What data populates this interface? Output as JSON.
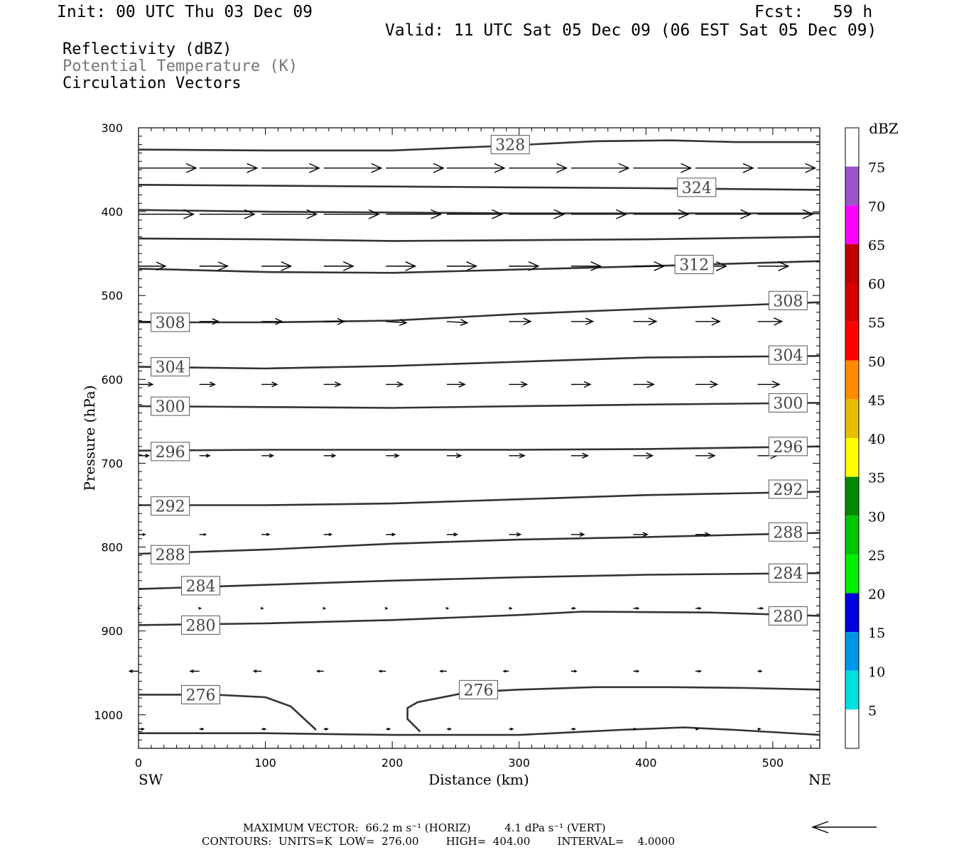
{
  "header": {
    "init": "Init: 00 UTC Thu 03 Dec 09",
    "fcst": "Fcst:   59 h",
    "valid": "Valid: 11 UTC Sat 05 Dec 09 (06 EST Sat 05 Dec 09)"
  },
  "fields": {
    "reflectivity": "Reflectivity (dBZ)",
    "potential_temperature": "Potential Temperature (K)",
    "circulation": "Circulation Vectors"
  },
  "footer": {
    "line1": "MAXIMUM VECTOR:  66.2 m s⁻¹ (HORIZ)          4.1 dPa s⁻¹ (VERT)",
    "line2": "CONTOURS:  UNITS=K  LOW=  276.00        HIGH=  404.00        INTERVAL=    4.0000"
  },
  "colors": {
    "contour": "#333333",
    "vector": "#000000"
  },
  "chart_data": {
    "type": "line",
    "xlabel": "Distance (km)",
    "ylabel": "Pressure (hPa)",
    "x_ticks": [
      0,
      100,
      200,
      300,
      400,
      500
    ],
    "y_ticks": [
      300,
      400,
      500,
      600,
      700,
      800,
      900,
      1000
    ],
    "xlim": [
      0,
      537
    ],
    "ylim": [
      300,
      1040
    ],
    "y_inverted": true,
    "left_end_label": "SW",
    "right_end_label": "NE",
    "colorbar": {
      "title": "dBZ",
      "levels": [
        5,
        10,
        15,
        20,
        25,
        30,
        35,
        40,
        45,
        50,
        55,
        60,
        65,
        70,
        75
      ],
      "colors": [
        "#ffffff",
        "#00e0e0",
        "#0096e6",
        "#0000dc",
        "#00ee00",
        "#00c400",
        "#008800",
        "#ffff00",
        "#e6bf00",
        "#ff8c00",
        "#ff0000",
        "#d60000",
        "#c00000",
        "#ff00ff",
        "#9955c8",
        "#ffffff"
      ]
    },
    "contour_labels": [
      {
        "value": "328",
        "x": 293,
        "p": 320
      },
      {
        "value": "324",
        "x": 440,
        "p": 371
      },
      {
        "value": "312",
        "x": 438,
        "p": 463
      },
      {
        "value": "308",
        "x": 25,
        "p": 532
      },
      {
        "value": "308",
        "x": 512,
        "p": 506
      },
      {
        "value": "304",
        "x": 25,
        "p": 585
      },
      {
        "value": "304",
        "x": 512,
        "p": 571
      },
      {
        "value": "300",
        "x": 25,
        "p": 632
      },
      {
        "value": "300",
        "x": 512,
        "p": 628
      },
      {
        "value": "296",
        "x": 25,
        "p": 686
      },
      {
        "value": "296",
        "x": 512,
        "p": 680
      },
      {
        "value": "292",
        "x": 25,
        "p": 751
      },
      {
        "value": "292",
        "x": 512,
        "p": 731
      },
      {
        "value": "288",
        "x": 25,
        "p": 809
      },
      {
        "value": "288",
        "x": 512,
        "p": 782
      },
      {
        "value": "284",
        "x": 49,
        "p": 846
      },
      {
        "value": "284",
        "x": 512,
        "p": 831
      },
      {
        "value": "280",
        "x": 49,
        "p": 893
      },
      {
        "value": "280",
        "x": 512,
        "p": 882
      },
      {
        "value": "276",
        "x": 49,
        "p": 976
      },
      {
        "value": "276",
        "x": 268,
        "p": 970
      }
    ],
    "contours": [
      {
        "x": [
          0,
          100,
          200,
          280,
          360,
          420,
          470,
          537
        ],
        "p": [
          326,
          327,
          327,
          322,
          316,
          315,
          317,
          317
        ]
      },
      {
        "x": [
          0,
          100,
          200,
          300,
          400,
          537
        ],
        "p": [
          368,
          369,
          370,
          371,
          372,
          374
        ]
      },
      {
        "x": [
          0,
          100,
          200,
          300,
          400,
          537
        ],
        "p": [
          398,
          400,
          401,
          402,
          402,
          402
        ]
      },
      {
        "x": [
          0,
          100,
          200,
          300,
          400,
          537
        ],
        "p": [
          432,
          433,
          435,
          434,
          433,
          430
        ]
      },
      {
        "x": [
          0,
          100,
          200,
          300,
          400,
          537
        ],
        "p": [
          468,
          472,
          473,
          469,
          465,
          459
        ]
      },
      {
        "x": [
          0,
          100,
          200,
          300,
          400,
          537
        ],
        "p": [
          532,
          532,
          530,
          522,
          516,
          508
        ]
      },
      {
        "x": [
          0,
          100,
          200,
          300,
          400,
          537
        ],
        "p": [
          585,
          587,
          584,
          579,
          574,
          572
        ]
      },
      {
        "x": [
          0,
          100,
          200,
          300,
          400,
          537
        ],
        "p": [
          632,
          633,
          634,
          632,
          630,
          628
        ]
      },
      {
        "x": [
          0,
          100,
          200,
          300,
          400,
          537
        ],
        "p": [
          685,
          684,
          684,
          684,
          683,
          680
        ]
      },
      {
        "x": [
          0,
          100,
          200,
          300,
          400,
          537
        ],
        "p": [
          750,
          750,
          748,
          743,
          738,
          734
        ]
      },
      {
        "x": [
          0,
          100,
          200,
          300,
          400,
          537
        ],
        "p": [
          808,
          803,
          796,
          791,
          788,
          783
        ]
      },
      {
        "x": [
          0,
          100,
          200,
          300,
          400,
          537
        ],
        "p": [
          850,
          845,
          840,
          836,
          833,
          831
        ]
      },
      {
        "x": [
          0,
          100,
          200,
          300,
          350,
          450,
          537
        ],
        "p": [
          893,
          891,
          887,
          881,
          877,
          878,
          882
        ]
      },
      {
        "x": [
          0,
          60,
          100,
          120,
          140
        ],
        "p": [
          976,
          976,
          979,
          990,
          1018
        ]
      },
      {
        "x": [
          222,
          212,
          212,
          220,
          260,
          300,
          360,
          420,
          480,
          537
        ],
        "p": [
          1020,
          1005,
          992,
          985,
          973,
          970,
          967,
          967,
          968,
          970
        ]
      },
      {
        "x": [
          0,
          100,
          200,
          300,
          380,
          430,
          470,
          537
        ],
        "p": [
          1022,
          1022,
          1024,
          1024,
          1018,
          1015,
          1018,
          1024
        ]
      }
    ],
    "vectors": [
      {
        "p": 348,
        "dx": [
          45,
          45,
          45,
          45,
          45,
          45,
          45,
          45,
          45,
          45,
          45
        ],
        "dy": [
          0,
          0,
          0,
          0,
          0,
          0,
          0,
          0,
          0,
          0,
          0
        ]
      },
      {
        "p": 403,
        "dx": [
          43,
          43,
          43,
          43,
          43,
          43,
          43,
          43,
          43,
          43,
          43
        ],
        "dy": [
          0,
          0,
          0,
          0,
          0,
          0,
          0,
          0,
          0,
          0,
          0
        ]
      },
      {
        "p": 465,
        "dx": [
          21,
          22,
          23,
          23,
          23,
          23,
          23,
          23,
          24,
          24,
          24
        ],
        "dy": [
          0,
          0,
          0,
          0,
          0,
          0,
          0,
          0,
          0,
          0,
          0
        ]
      },
      {
        "p": 531,
        "dx": [
          15,
          15,
          16,
          16,
          16,
          16,
          17,
          17,
          18,
          19,
          19
        ],
        "dy": [
          0,
          0,
          0,
          0,
          1,
          1,
          0,
          0,
          0,
          0,
          0
        ]
      },
      {
        "p": 606,
        "dx": [
          11,
          12,
          12,
          13,
          13,
          14,
          14,
          15,
          16,
          17,
          17
        ],
        "dy": [
          0,
          0,
          0,
          0,
          0,
          0,
          0,
          0,
          0,
          0,
          0
        ]
      },
      {
        "p": 691,
        "dx": [
          8,
          8,
          9,
          9,
          10,
          11,
          12,
          13,
          15,
          15,
          15
        ],
        "dy": [
          0,
          0,
          0,
          0,
          0,
          0,
          0,
          0,
          0,
          0,
          0
        ]
      },
      {
        "p": 785,
        "dx": [
          5,
          5,
          6,
          6,
          7,
          8,
          9,
          10,
          11,
          11,
          0
        ],
        "dy": [
          0,
          0,
          0,
          0,
          0,
          0,
          0,
          0,
          0,
          0,
          0
        ]
      },
      {
        "p": 873,
        "dx": [
          1,
          1,
          1,
          1,
          1,
          1,
          2,
          3,
          4,
          4,
          4
        ],
        "dy": [
          0,
          0,
          0,
          0,
          0,
          0,
          0,
          0,
          0,
          0,
          0
        ]
      },
      {
        "p": 948,
        "dx": [
          -7,
          -7,
          -6,
          -5,
          -5,
          -5,
          -4,
          4,
          4,
          4,
          3
        ],
        "dy": [
          0,
          0,
          0,
          0,
          0,
          0,
          0,
          0,
          0,
          0,
          0
        ]
      },
      {
        "p": 1017,
        "dx": [
          4,
          3,
          3,
          3,
          3,
          3,
          3,
          3,
          2,
          2,
          2
        ],
        "dy": [
          0,
          0,
          0,
          0,
          0,
          0,
          0,
          0,
          0,
          0,
          0
        ]
      }
    ],
    "vector_x": [
      0,
      48,
      97,
      146,
      195,
      243,
      292,
      341,
      390,
      439,
      488
    ],
    "reference_vector": {
      "label": "",
      "dx": -90
    }
  }
}
